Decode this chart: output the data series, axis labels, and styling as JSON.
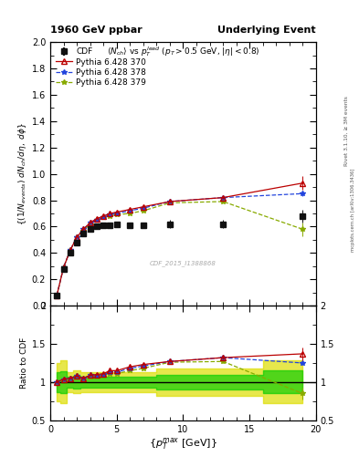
{
  "title_left": "1960 GeV ppbar",
  "title_right": "Underlying Event",
  "watermark": "CDF_2015_I1388868",
  "rivet_label": "Rivet 3.1.10, ≥ 3M events",
  "arxiv_label": "mcplots.cern.ch [arXiv:1306.3436]",
  "ylabel_main": "{(1/N_{events}) dN_{ch}/d#eta, d#phi}",
  "ylabel_ratio": "Ratio to CDF",
  "xlim": [
    0,
    20
  ],
  "ylim_main": [
    0.0,
    2.0
  ],
  "ylim_ratio": [
    0.5,
    2.0
  ],
  "cdf_x": [
    0.5,
    1.0,
    1.5,
    2.0,
    2.5,
    3.0,
    3.5,
    4.0,
    4.5,
    5.0,
    6.0,
    7.0,
    9.0,
    13.0,
    19.0
  ],
  "cdf_y": [
    0.08,
    0.28,
    0.4,
    0.48,
    0.55,
    0.58,
    0.6,
    0.61,
    0.61,
    0.62,
    0.61,
    0.61,
    0.62,
    0.62,
    0.68
  ],
  "cdf_yerr": [
    0.01,
    0.02,
    0.02,
    0.02,
    0.02,
    0.02,
    0.02,
    0.02,
    0.02,
    0.02,
    0.02,
    0.02,
    0.03,
    0.03,
    0.05
  ],
  "py370_x": [
    0.5,
    1.0,
    1.5,
    2.0,
    2.5,
    3.0,
    3.5,
    4.0,
    4.5,
    5.0,
    6.0,
    7.0,
    9.0,
    13.0,
    19.0
  ],
  "py370_y": [
    0.08,
    0.29,
    0.42,
    0.52,
    0.58,
    0.63,
    0.66,
    0.68,
    0.7,
    0.71,
    0.73,
    0.75,
    0.79,
    0.82,
    0.93
  ],
  "py370_yerr": [
    0.002,
    0.003,
    0.003,
    0.003,
    0.003,
    0.003,
    0.003,
    0.003,
    0.003,
    0.003,
    0.004,
    0.004,
    0.005,
    0.007,
    0.05
  ],
  "py378_x": [
    0.5,
    1.0,
    1.5,
    2.0,
    2.5,
    3.0,
    3.5,
    4.0,
    4.5,
    5.0,
    6.0,
    7.0,
    9.0,
    13.0,
    19.0
  ],
  "py378_y": [
    0.08,
    0.29,
    0.42,
    0.52,
    0.58,
    0.63,
    0.65,
    0.67,
    0.69,
    0.7,
    0.72,
    0.74,
    0.79,
    0.82,
    0.85
  ],
  "py378_yerr": [
    0.002,
    0.003,
    0.003,
    0.003,
    0.003,
    0.003,
    0.003,
    0.003,
    0.003,
    0.003,
    0.004,
    0.004,
    0.005,
    0.007,
    0.018
  ],
  "py379_x": [
    0.5,
    1.0,
    1.5,
    2.0,
    2.5,
    3.0,
    3.5,
    4.0,
    4.5,
    5.0,
    6.0,
    7.0,
    9.0,
    13.0,
    19.0
  ],
  "py379_y": [
    0.08,
    0.29,
    0.42,
    0.52,
    0.57,
    0.62,
    0.65,
    0.67,
    0.68,
    0.69,
    0.7,
    0.72,
    0.78,
    0.79,
    0.58
  ],
  "py379_yerr": [
    0.002,
    0.003,
    0.003,
    0.003,
    0.003,
    0.003,
    0.003,
    0.003,
    0.003,
    0.003,
    0.004,
    0.004,
    0.005,
    0.007,
    0.05
  ],
  "cdf_color": "#111111",
  "py370_color": "#bb0000",
  "py378_color": "#2244dd",
  "py379_color": "#88aa00",
  "ratio_py370_y": [
    1.0,
    1.04,
    1.05,
    1.08,
    1.05,
    1.09,
    1.1,
    1.11,
    1.15,
    1.15,
    1.2,
    1.23,
    1.27,
    1.32,
    1.37
  ],
  "ratio_py378_y": [
    1.0,
    1.04,
    1.05,
    1.08,
    1.05,
    1.09,
    1.08,
    1.1,
    1.13,
    1.13,
    1.18,
    1.21,
    1.27,
    1.32,
    1.25
  ],
  "ratio_py379_y": [
    1.0,
    1.04,
    1.05,
    1.08,
    1.04,
    1.07,
    1.08,
    1.1,
    1.11,
    1.11,
    1.15,
    1.18,
    1.26,
    1.27,
    0.85
  ],
  "ratio_py370_yerr": [
    0.008,
    0.012,
    0.008,
    0.008,
    0.008,
    0.008,
    0.008,
    0.008,
    0.008,
    0.008,
    0.008,
    0.008,
    0.012,
    0.018,
    0.08
  ],
  "ratio_py378_yerr": [
    0.008,
    0.012,
    0.008,
    0.008,
    0.008,
    0.008,
    0.008,
    0.008,
    0.008,
    0.008,
    0.008,
    0.008,
    0.012,
    0.018,
    0.03
  ],
  "ratio_py379_yerr": [
    0.008,
    0.012,
    0.008,
    0.008,
    0.008,
    0.008,
    0.008,
    0.008,
    0.008,
    0.008,
    0.008,
    0.008,
    0.012,
    0.018,
    0.08
  ],
  "cdf_band_x": [
    0.5,
    1.0,
    1.5,
    2.0,
    2.5,
    3.0,
    3.5,
    4.0,
    4.5,
    5.0,
    6.0,
    7.0,
    9.0,
    13.0,
    19.0
  ],
  "cdf_band_lo": [
    0.87,
    0.86,
    0.93,
    0.92,
    0.93,
    0.93,
    0.93,
    0.93,
    0.93,
    0.93,
    0.93,
    0.93,
    0.9,
    0.9,
    0.85
  ],
  "cdf_band_hi": [
    1.13,
    1.14,
    1.07,
    1.08,
    1.07,
    1.07,
    1.07,
    1.07,
    1.07,
    1.07,
    1.07,
    1.07,
    1.1,
    1.1,
    1.15
  ],
  "cdf_band_outer_lo": [
    0.75,
    0.72,
    0.87,
    0.85,
    0.87,
    0.87,
    0.87,
    0.87,
    0.87,
    0.87,
    0.87,
    0.87,
    0.82,
    0.82,
    0.72
  ],
  "cdf_band_outer_hi": [
    1.25,
    1.28,
    1.13,
    1.15,
    1.13,
    1.13,
    1.13,
    1.13,
    1.13,
    1.13,
    1.13,
    1.13,
    1.18,
    1.18,
    1.28
  ]
}
